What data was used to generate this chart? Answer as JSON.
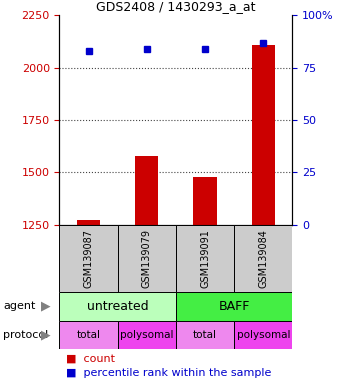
{
  "title": "GDS2408 / 1430293_a_at",
  "samples": [
    "GSM139087",
    "GSM139079",
    "GSM139091",
    "GSM139084"
  ],
  "counts": [
    1270,
    1580,
    1480,
    2110
  ],
  "percentile_ranks": [
    83,
    84,
    84,
    87
  ],
  "ylim_left": [
    1250,
    2250
  ],
  "ylim_right": [
    0,
    100
  ],
  "yticks_left": [
    1250,
    1500,
    1750,
    2000,
    2250
  ],
  "yticks_right": [
    0,
    25,
    50,
    75,
    100
  ],
  "bar_color": "#cc0000",
  "dot_color": "#0000cc",
  "agent_row": [
    {
      "label": "untreated",
      "color": "#bbffbb",
      "span": [
        0,
        2
      ]
    },
    {
      "label": "BAFF",
      "color": "#44ee44",
      "span": [
        2,
        4
      ]
    }
  ],
  "protocol_row": [
    {
      "label": "total",
      "color": "#ee88ee",
      "span": [
        0,
        1
      ]
    },
    {
      "label": "polysomal",
      "color": "#ee44ee",
      "span": [
        1,
        2
      ]
    },
    {
      "label": "total",
      "color": "#ee88ee",
      "span": [
        2,
        3
      ]
    },
    {
      "label": "polysomal",
      "color": "#ee44ee",
      "span": [
        3,
        4
      ]
    }
  ],
  "left_label_color": "#cc0000",
  "right_label_color": "#0000cc",
  "grid_color": "#444444",
  "bar_width": 0.4,
  "bg_color": "#ffffff",
  "legend_count_color": "#cc0000",
  "legend_pct_color": "#0000cc",
  "ax_facecolor": "#ffffff"
}
